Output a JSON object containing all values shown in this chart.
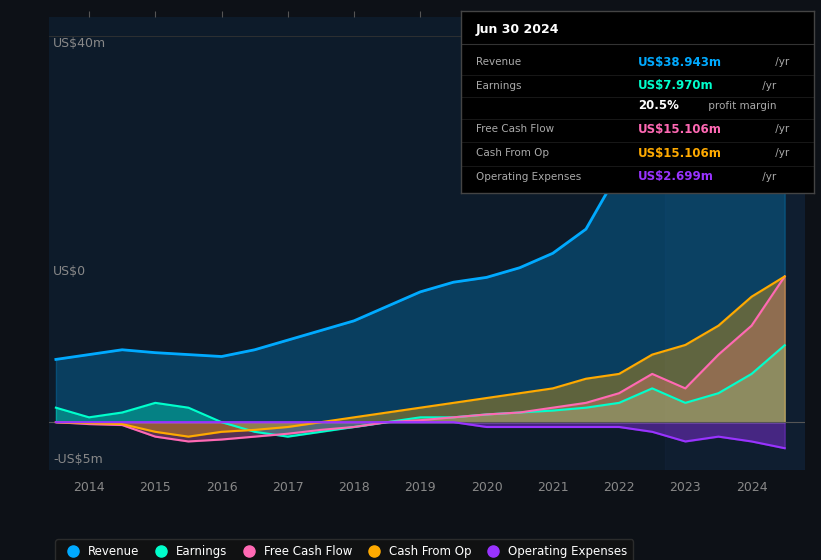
{
  "bg_color": "#0d1117",
  "plot_bg_color": "#0d1b2a",
  "years": [
    2013.5,
    2014.0,
    2014.5,
    2015.0,
    2015.5,
    2016.0,
    2016.5,
    2017.0,
    2017.5,
    2018.0,
    2018.5,
    2019.0,
    2019.5,
    2020.0,
    2020.5,
    2021.0,
    2021.5,
    2022.0,
    2022.5,
    2023.0,
    2023.5,
    2024.0,
    2024.5
  ],
  "revenue": [
    6.5,
    7.0,
    7.5,
    7.2,
    7.0,
    6.8,
    7.5,
    8.5,
    9.5,
    10.5,
    12.0,
    13.5,
    14.5,
    15.0,
    16.0,
    17.5,
    20.0,
    26.0,
    33.0,
    37.0,
    38.0,
    39.0,
    38.9
  ],
  "earnings": [
    1.5,
    0.5,
    1.0,
    2.0,
    1.5,
    0.0,
    -1.0,
    -1.5,
    -1.0,
    -0.5,
    0.0,
    0.5,
    0.5,
    0.8,
    1.0,
    1.2,
    1.5,
    2.0,
    3.5,
    2.0,
    3.0,
    5.0,
    7.97
  ],
  "free_cash_flow": [
    0.0,
    -0.2,
    -0.3,
    -1.5,
    -2.0,
    -1.8,
    -1.5,
    -1.2,
    -0.8,
    -0.5,
    0.0,
    0.2,
    0.5,
    0.8,
    1.0,
    1.5,
    2.0,
    3.0,
    5.0,
    3.5,
    7.0,
    10.0,
    15.1
  ],
  "cash_from_op": [
    0.0,
    -0.1,
    -0.2,
    -1.0,
    -1.5,
    -1.0,
    -0.8,
    -0.5,
    0.0,
    0.5,
    1.0,
    1.5,
    2.0,
    2.5,
    3.0,
    3.5,
    4.5,
    5.0,
    7.0,
    8.0,
    10.0,
    13.0,
    15.1
  ],
  "op_expenses": [
    0.0,
    0.0,
    0.0,
    0.0,
    0.0,
    0.0,
    0.0,
    0.0,
    0.0,
    0.0,
    0.0,
    0.0,
    0.0,
    -0.5,
    -0.5,
    -0.5,
    -0.5,
    -0.5,
    -1.0,
    -2.0,
    -1.5,
    -2.0,
    -2.7
  ],
  "revenue_color": "#00aaff",
  "earnings_color": "#00ffcc",
  "free_cash_flow_color": "#ff69b4",
  "cash_from_op_color": "#ffaa00",
  "op_expenses_color": "#9933ff",
  "ylim": [
    -5,
    42
  ],
  "xticks": [
    2014,
    2015,
    2016,
    2017,
    2018,
    2019,
    2020,
    2021,
    2022,
    2023,
    2024
  ],
  "legend_items": [
    "Revenue",
    "Earnings",
    "Free Cash Flow",
    "Cash From Op",
    "Operating Expenses"
  ],
  "legend_colors": [
    "#00aaff",
    "#00ffcc",
    "#ff69b4",
    "#ffaa00",
    "#9933ff"
  ],
  "info_date": "Jun 30 2024",
  "info_rows": [
    {
      "label": "Revenue",
      "value": "US$38.943m",
      "unit": " /yr",
      "color": "#00aaff"
    },
    {
      "label": "Earnings",
      "value": "US$7.970m",
      "unit": " /yr",
      "color": "#00ffcc"
    },
    {
      "label": "",
      "value": "20.5%",
      "unit": " profit margin",
      "color": "#ffffff"
    },
    {
      "label": "Free Cash Flow",
      "value": "US$15.106m",
      "unit": " /yr",
      "color": "#ff69b4"
    },
    {
      "label": "Cash From Op",
      "value": "US$15.106m",
      "unit": " /yr",
      "color": "#ffaa00"
    },
    {
      "label": "Operating Expenses",
      "value": "US$2.699m",
      "unit": " /yr",
      "color": "#9933ff"
    }
  ]
}
